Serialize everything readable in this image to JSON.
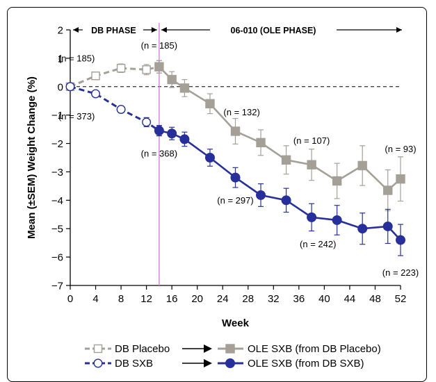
{
  "chart_data": {
    "type": "line",
    "xlabel": "Week",
    "ylabel": "Mean (±SEM) Weight Change (%)",
    "xlim": [
      0,
      52
    ],
    "ylim": [
      -7,
      2
    ],
    "xticks": [
      0,
      4,
      8,
      12,
      16,
      20,
      24,
      28,
      32,
      36,
      40,
      44,
      48,
      52
    ],
    "yticks": [
      2,
      1,
      0,
      -1,
      -2,
      -3,
      -4,
      -5,
      -6,
      -7
    ],
    "x_tick_labels": [
      "0",
      "4",
      "8",
      "12",
      "16",
      "20",
      "24",
      "28",
      "32",
      "36",
      "40",
      "44",
      "48",
      "52"
    ],
    "y_tick_labels": [
      "2",
      "1",
      "0",
      "−1",
      "−2",
      "−3",
      "−4",
      "−5",
      "−6",
      "−7"
    ],
    "reference_line_y": 0,
    "phase_divider_x": 14,
    "phases": {
      "db": "DB PHASE",
      "ole": "06-010 (OLE PHASE)"
    },
    "colors": {
      "placebo": "#a49f97",
      "sxb": "#27309a",
      "divider": "#d98ad9",
      "frame": "#000000"
    },
    "series": [
      {
        "name": "DB Placebo",
        "style": "dashed-open-square",
        "x": [
          0,
          4,
          8,
          12,
          14
        ],
        "y": [
          0.0,
          0.38,
          0.65,
          0.6,
          0.7
        ],
        "err": [
          0.0,
          0.08,
          0.15,
          0.18,
          0.22
        ]
      },
      {
        "name": "OLE SXB (from DB Placebo)",
        "style": "solid-filled-square",
        "x": [
          14,
          16,
          18,
          22,
          26,
          30,
          34,
          38,
          42,
          46,
          50,
          52
        ],
        "y": [
          0.7,
          0.25,
          -0.05,
          -0.6,
          -1.57,
          -1.97,
          -2.58,
          -2.75,
          -3.32,
          -2.78,
          -3.65,
          -3.25
        ],
        "err": [
          0.22,
          0.28,
          0.3,
          0.35,
          0.45,
          0.45,
          0.5,
          0.55,
          0.62,
          0.7,
          0.72,
          0.78
        ]
      },
      {
        "name": "DB SXB",
        "style": "dashed-open-circle",
        "x": [
          0,
          4,
          8,
          12,
          14
        ],
        "y": [
          0.0,
          -0.25,
          -0.8,
          -1.25,
          -1.55
        ],
        "err": [
          0.0,
          0.1,
          0.12,
          0.16,
          0.18
        ]
      },
      {
        "name": "OLE SXB (from DB SXB)",
        "style": "solid-filled-circle",
        "x": [
          14,
          16,
          18,
          22,
          26,
          30,
          34,
          38,
          42,
          46,
          50,
          52
        ],
        "y": [
          -1.55,
          -1.65,
          -1.85,
          -2.5,
          -3.2,
          -3.82,
          -4.0,
          -4.6,
          -4.7,
          -5.0,
          -4.92,
          -5.4
        ],
        "err": [
          0.18,
          0.22,
          0.25,
          0.3,
          0.35,
          0.4,
          0.42,
          0.48,
          0.52,
          0.55,
          0.6,
          0.55
        ]
      }
    ],
    "annotations": [
      {
        "text": "(n = 185)",
        "x": 1.0,
        "y": 1.0
      },
      {
        "text": "(n = 185)",
        "x": 14.0,
        "y": 1.45
      },
      {
        "text": "(n = 373)",
        "x": 1.0,
        "y": -1.05
      },
      {
        "text": "(n = 368)",
        "x": 14.0,
        "y": -2.35
      },
      {
        "text": "(n = 132)",
        "x": 27.0,
        "y": -0.9
      },
      {
        "text": "(n = 107)",
        "x": 38.0,
        "y": -1.9
      },
      {
        "text": "(n = 93)",
        "x": 52.0,
        "y": -2.2
      },
      {
        "text": "(n = 297)",
        "x": 26.0,
        "y": -4.0
      },
      {
        "text": "(n = 242)",
        "x": 39.0,
        "y": -5.55
      },
      {
        "text": "(n = 223)",
        "x": 52.0,
        "y": -6.55
      }
    ],
    "legend": {
      "placement": "bottom",
      "rows": [
        {
          "left": "DB Placebo",
          "right": "OLE SXB (from DB Placebo)"
        },
        {
          "left": "DB SXB",
          "right": "OLE SXB (from DB SXB)"
        }
      ]
    }
  }
}
